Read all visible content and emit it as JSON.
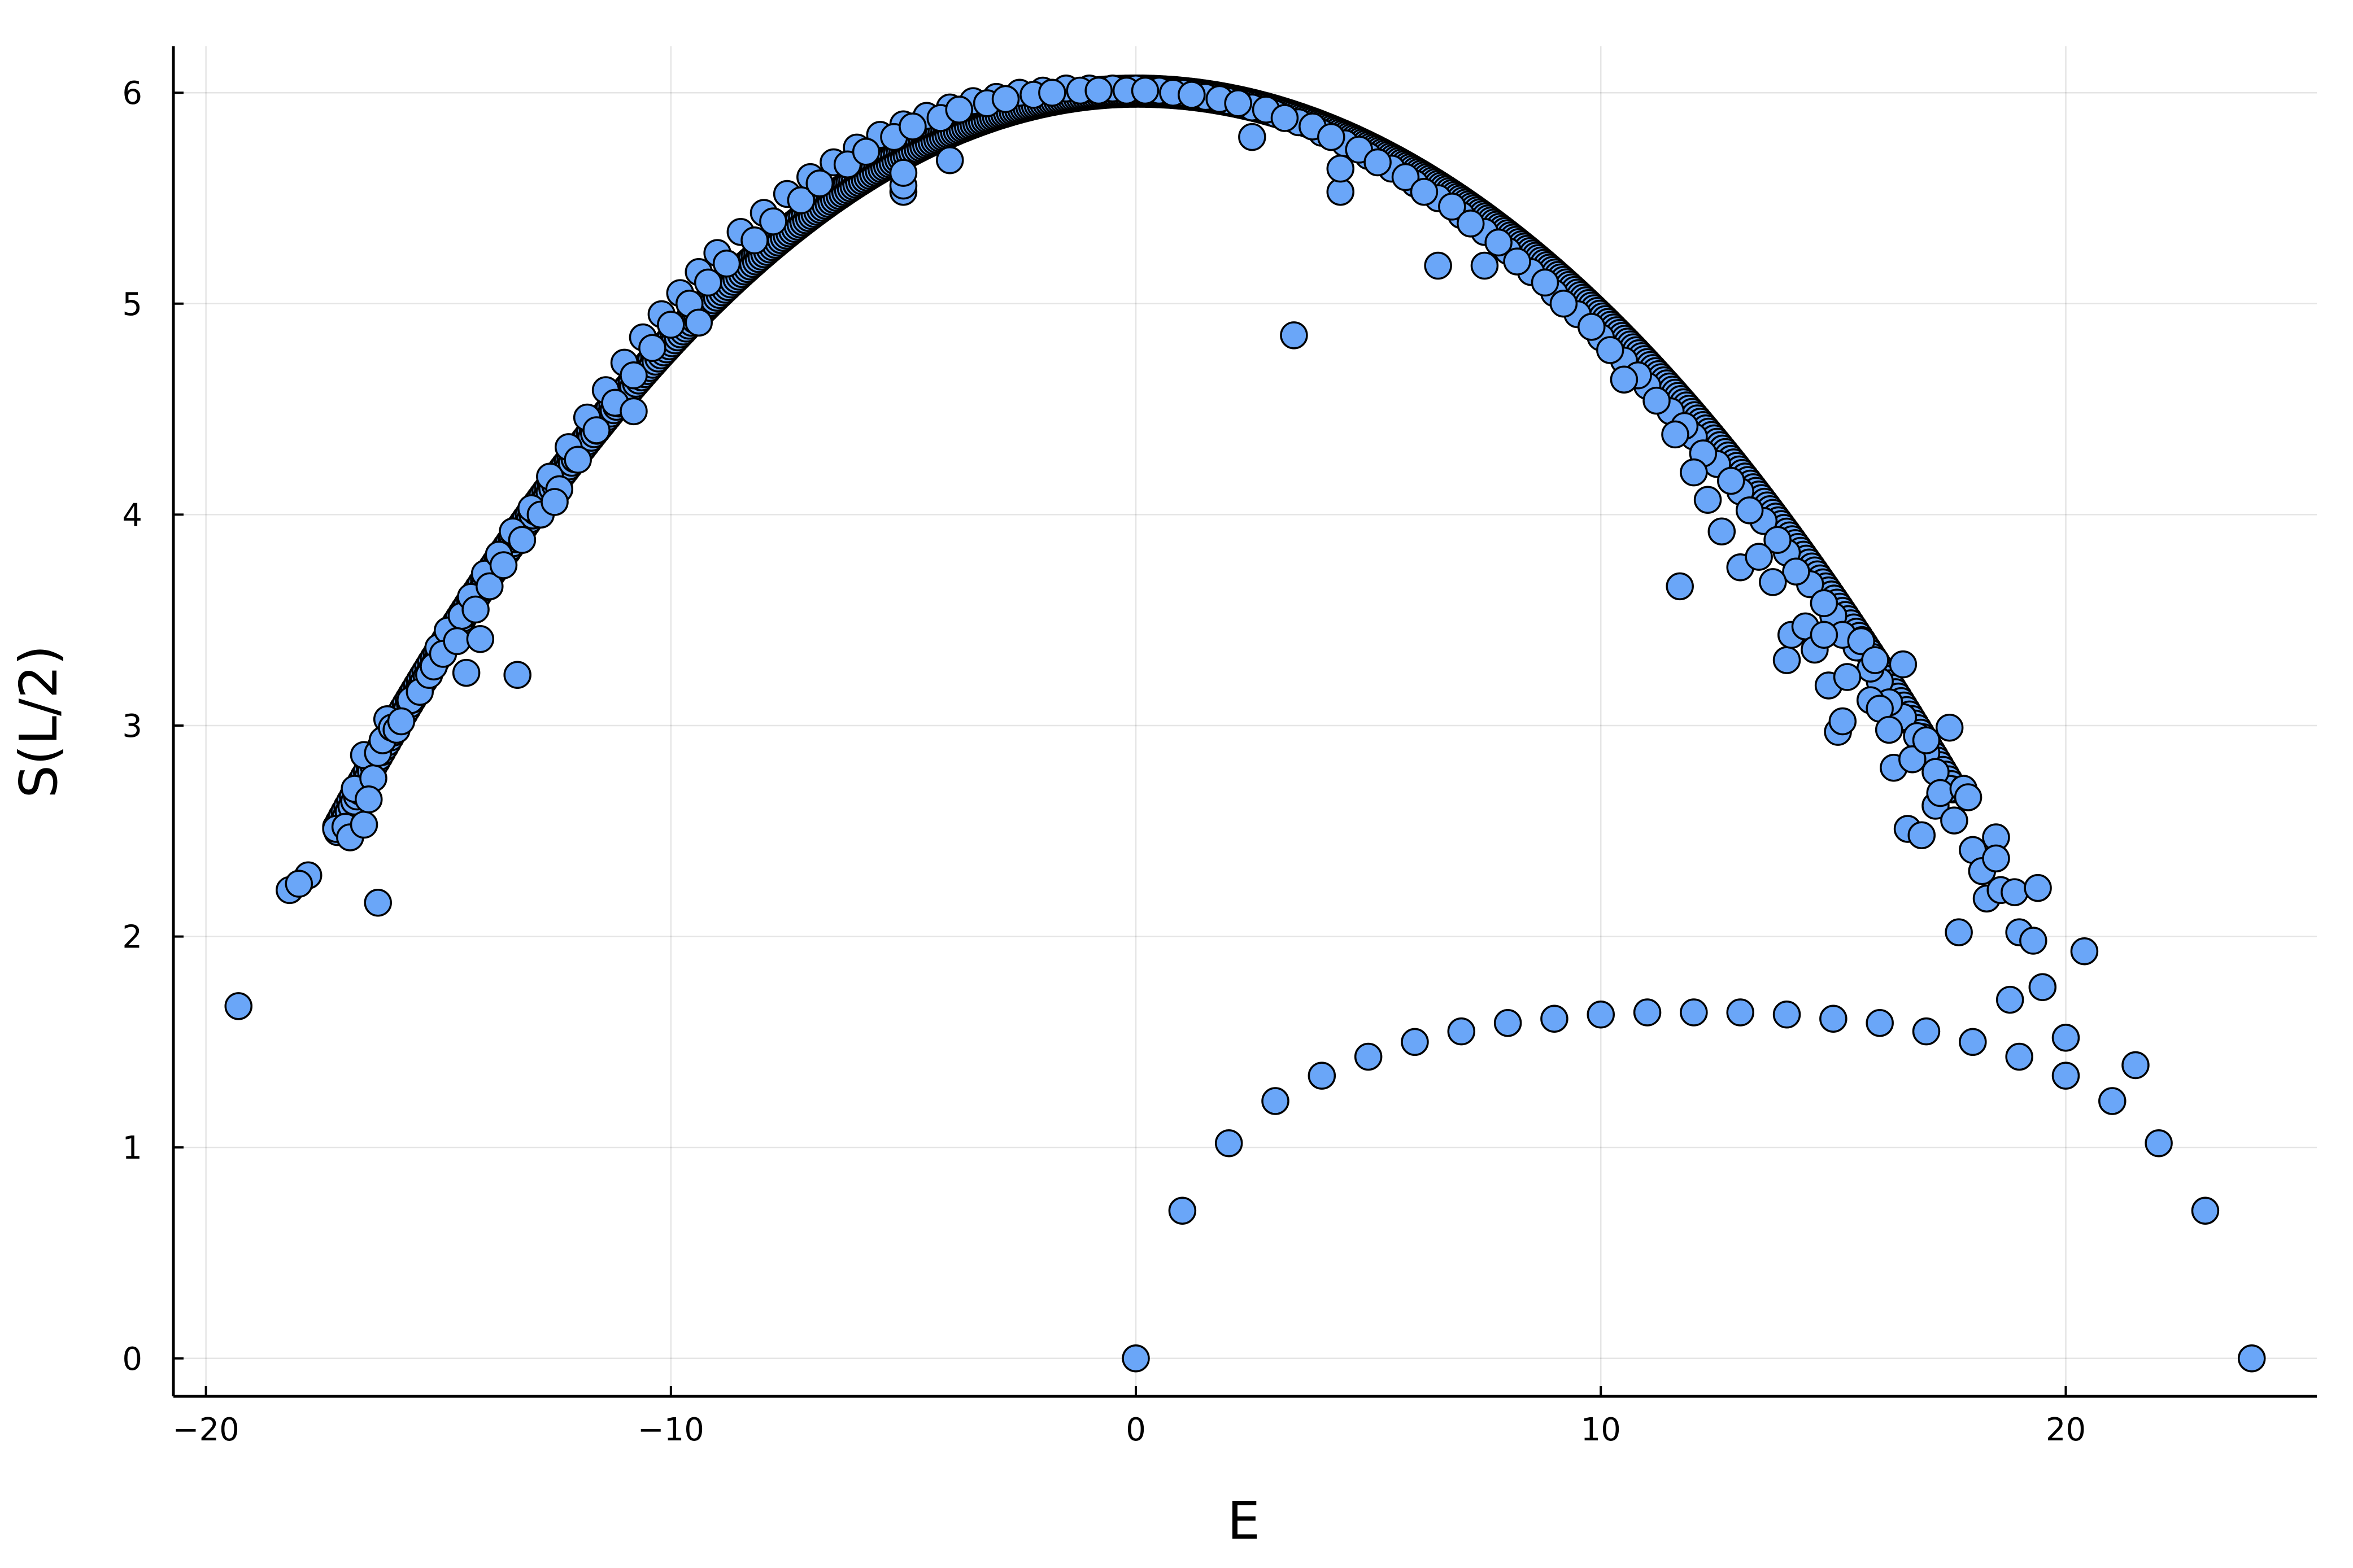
{
  "chart_data": {
    "type": "scatter",
    "title": "",
    "xlabel": "E",
    "ylabel": "S(L/2)",
    "xlim": [
      -20.7,
      25.4
    ],
    "ylim": [
      -0.18,
      6.22
    ],
    "xticks": [
      -20,
      -10,
      0,
      10,
      20
    ],
    "xtick_labels": [
      "−20",
      "−10",
      "0",
      "10",
      "20"
    ],
    "yticks": [
      0,
      1,
      2,
      3,
      4,
      5,
      6
    ],
    "ytick_labels": [
      "0",
      "1",
      "2",
      "3",
      "4",
      "5",
      "6"
    ],
    "grid": true,
    "legend": "none",
    "marker_color": "#6aa6f8",
    "marker_edge_color": "#000000",
    "band": {
      "description_shape": "parabola-like dense band",
      "peak_x": 0,
      "peak_y": 6.02,
      "left_end_x": -17.2,
      "right_end_x": 17.6
    },
    "series": [
      {
        "points": [
          [
            -19.3,
            1.67
          ],
          [
            -18.2,
            2.22
          ],
          [
            -17.8,
            2.29
          ],
          [
            -17.2,
            2.51
          ],
          [
            -17.0,
            2.52
          ],
          [
            -16.9,
            2.47
          ],
          [
            -16.8,
            2.7
          ],
          [
            -16.6,
            2.53
          ],
          [
            -16.6,
            2.86
          ],
          [
            -16.4,
            2.75
          ],
          [
            -16.3,
            2.87
          ],
          [
            -16.2,
            2.93
          ],
          [
            -16.1,
            3.03
          ],
          [
            -16.0,
            2.99
          ],
          [
            -15.9,
            2.98
          ],
          [
            -15.6,
            3.12
          ],
          [
            -15.4,
            3.16
          ],
          [
            -15.2,
            3.24
          ],
          [
            -15.0,
            3.37
          ],
          [
            -14.8,
            3.45
          ],
          [
            -14.5,
            3.52
          ],
          [
            -14.3,
            3.61
          ],
          [
            -14.0,
            3.72
          ],
          [
            -13.7,
            3.81
          ],
          [
            -13.4,
            3.92
          ],
          [
            -13.0,
            4.03
          ],
          [
            -12.6,
            4.18
          ],
          [
            -12.2,
            4.32
          ],
          [
            -11.8,
            4.46
          ],
          [
            -11.4,
            4.59
          ],
          [
            -11.0,
            4.72
          ],
          [
            -10.6,
            4.84
          ],
          [
            -10.2,
            4.95
          ],
          [
            -9.8,
            5.05
          ],
          [
            -9.4,
            5.15
          ],
          [
            -9.0,
            5.24
          ],
          [
            -8.5,
            5.34
          ],
          [
            -8.0,
            5.43
          ],
          [
            -7.5,
            5.52
          ],
          [
            -7.0,
            5.6
          ],
          [
            -6.5,
            5.67
          ],
          [
            -6.0,
            5.74
          ],
          [
            -5.5,
            5.8
          ],
          [
            -5.0,
            5.85
          ],
          [
            -4.5,
            5.89
          ],
          [
            -4.0,
            5.93
          ],
          [
            -3.5,
            5.96
          ],
          [
            -3.0,
            5.98
          ],
          [
            -2.5,
            6.0
          ],
          [
            -2.0,
            6.01
          ],
          [
            -1.5,
            6.02
          ],
          [
            -1.0,
            6.02
          ],
          [
            -0.5,
            6.02
          ],
          [
            0.0,
            6.02
          ],
          [
            0.5,
            6.01
          ],
          [
            1.0,
            6.0
          ],
          [
            1.5,
            5.98
          ],
          [
            2.0,
            5.96
          ],
          [
            2.5,
            5.93
          ],
          [
            3.0,
            5.9
          ],
          [
            3.5,
            5.86
          ],
          [
            4.0,
            5.81
          ],
          [
            4.5,
            5.76
          ],
          [
            5.0,
            5.7
          ],
          [
            5.5,
            5.64
          ],
          [
            6.0,
            5.57
          ],
          [
            6.5,
            5.5
          ],
          [
            7.0,
            5.42
          ],
          [
            7.5,
            5.34
          ],
          [
            8.0,
            5.25
          ],
          [
            8.5,
            5.15
          ],
          [
            9.0,
            5.05
          ],
          [
            9.5,
            4.95
          ],
          [
            10.0,
            4.84
          ],
          [
            10.5,
            4.73
          ],
          [
            11.0,
            4.61
          ],
          [
            11.5,
            4.49
          ],
          [
            12.0,
            4.37
          ],
          [
            12.5,
            4.24
          ],
          [
            13.0,
            4.11
          ],
          [
            13.5,
            3.97
          ],
          [
            14.0,
            3.82
          ],
          [
            14.5,
            3.67
          ],
          [
            15.0,
            3.52
          ],
          [
            15.5,
            3.37
          ],
          [
            16.0,
            3.21
          ],
          [
            16.5,
            3.04
          ],
          [
            17.0,
            2.87
          ],
          [
            17.5,
            2.7
          ],
          [
            -18.0,
            2.25
          ],
          [
            -16.5,
            2.65
          ],
          [
            -15.8,
            3.02
          ],
          [
            -15.1,
            3.28
          ],
          [
            -14.9,
            3.34
          ],
          [
            -14.6,
            3.4
          ],
          [
            -14.2,
            3.55
          ],
          [
            -13.9,
            3.66
          ],
          [
            -13.6,
            3.76
          ],
          [
            -13.2,
            3.88
          ],
          [
            -12.8,
            4.0
          ],
          [
            -12.4,
            4.12
          ],
          [
            -12.0,
            4.26
          ],
          [
            -11.6,
            4.4
          ],
          [
            -11.2,
            4.53
          ],
          [
            -10.8,
            4.66
          ],
          [
            -10.4,
            4.79
          ],
          [
            -10.0,
            4.9
          ],
          [
            -9.6,
            5.0
          ],
          [
            -9.2,
            5.1
          ],
          [
            -8.8,
            5.19
          ],
          [
            -8.2,
            5.3
          ],
          [
            -7.8,
            5.39
          ],
          [
            -7.2,
            5.49
          ],
          [
            -6.8,
            5.57
          ],
          [
            -6.2,
            5.66
          ],
          [
            -5.8,
            5.72
          ],
          [
            -5.2,
            5.79
          ],
          [
            -4.8,
            5.84
          ],
          [
            -4.2,
            5.88
          ],
          [
            -3.8,
            5.92
          ],
          [
            -3.2,
            5.95
          ],
          [
            -2.8,
            5.97
          ],
          [
            -2.2,
            5.99
          ],
          [
            -1.8,
            6.0
          ],
          [
            -1.2,
            6.01
          ],
          [
            -0.8,
            6.01
          ],
          [
            -0.2,
            6.01
          ],
          [
            0.2,
            6.01
          ],
          [
            0.8,
            6.0
          ],
          [
            1.2,
            5.99
          ],
          [
            1.8,
            5.97
          ],
          [
            2.2,
            5.95
          ],
          [
            2.8,
            5.92
          ],
          [
            3.2,
            5.88
          ],
          [
            3.8,
            5.84
          ],
          [
            4.2,
            5.79
          ],
          [
            4.8,
            5.73
          ],
          [
            5.2,
            5.67
          ],
          [
            5.8,
            5.6
          ],
          [
            6.2,
            5.53
          ],
          [
            6.8,
            5.46
          ],
          [
            7.2,
            5.38
          ],
          [
            7.8,
            5.29
          ],
          [
            8.2,
            5.2
          ],
          [
            8.8,
            5.1
          ],
          [
            9.2,
            5.0
          ],
          [
            9.8,
            4.89
          ],
          [
            10.2,
            4.78
          ],
          [
            10.8,
            4.66
          ],
          [
            11.2,
            4.54
          ],
          [
            11.8,
            4.42
          ],
          [
            12.2,
            4.29
          ],
          [
            12.8,
            4.16
          ],
          [
            13.2,
            4.02
          ],
          [
            13.8,
            3.88
          ],
          [
            14.2,
            3.73
          ],
          [
            14.8,
            3.58
          ],
          [
            15.2,
            3.43
          ],
          [
            15.8,
            3.27
          ],
          [
            16.2,
            3.11
          ],
          [
            16.8,
            2.95
          ],
          [
            17.2,
            2.78
          ],
          [
            -16.3,
            2.16
          ],
          [
            -14.4,
            3.25
          ],
          [
            -14.1,
            3.41
          ],
          [
            -13.3,
            3.24
          ],
          [
            -12.5,
            4.06
          ],
          [
            -10.8,
            4.49
          ],
          [
            -9.4,
            4.91
          ],
          [
            -5.0,
            5.53
          ],
          [
            -5.0,
            5.56
          ],
          [
            -5.0,
            5.62
          ],
          [
            -4.0,
            5.68
          ],
          [
            2.5,
            5.79
          ],
          [
            3.4,
            4.85
          ],
          [
            4.4,
            5.53
          ],
          [
            4.4,
            5.64
          ],
          [
            6.5,
            5.18
          ],
          [
            7.5,
            5.18
          ],
          [
            10.5,
            4.64
          ],
          [
            11.6,
            4.38
          ],
          [
            11.7,
            3.66
          ],
          [
            12.0,
            4.2
          ],
          [
            12.3,
            4.07
          ],
          [
            12.6,
            3.92
          ],
          [
            13.0,
            3.75
          ],
          [
            13.4,
            3.8
          ],
          [
            13.7,
            3.68
          ],
          [
            14.0,
            3.31
          ],
          [
            14.1,
            3.43
          ],
          [
            14.4,
            3.47
          ],
          [
            14.6,
            3.36
          ],
          [
            14.8,
            3.43
          ],
          [
            14.9,
            3.19
          ],
          [
            15.1,
            2.97
          ],
          [
            15.2,
            3.02
          ],
          [
            15.3,
            3.23
          ],
          [
            15.6,
            3.4
          ],
          [
            15.8,
            3.12
          ],
          [
            15.9,
            3.31
          ],
          [
            16.0,
            3.08
          ],
          [
            16.2,
            2.98
          ],
          [
            16.3,
            2.8
          ],
          [
            16.5,
            3.29
          ],
          [
            16.6,
            2.51
          ],
          [
            16.7,
            2.84
          ],
          [
            16.9,
            2.48
          ],
          [
            17.0,
            2.93
          ],
          [
            17.2,
            2.62
          ],
          [
            17.3,
            2.68
          ],
          [
            17.5,
            2.99
          ],
          [
            17.6,
            2.55
          ],
          [
            17.7,
            2.02
          ],
          [
            17.8,
            2.7
          ],
          [
            17.9,
            2.66
          ],
          [
            18.0,
            2.41
          ],
          [
            18.2,
            2.31
          ],
          [
            18.3,
            2.18
          ],
          [
            18.5,
            2.47
          ],
          [
            18.5,
            2.37
          ],
          [
            18.6,
            2.22
          ],
          [
            18.8,
            1.7
          ],
          [
            18.9,
            2.21
          ],
          [
            19.0,
            2.02
          ],
          [
            19.3,
            1.98
          ],
          [
            19.4,
            2.23
          ],
          [
            19.5,
            1.76
          ],
          [
            20.0,
            1.52
          ],
          [
            20.4,
            1.93
          ],
          [
            0,
            0.0
          ],
          [
            1,
            0.7
          ],
          [
            2,
            1.02
          ],
          [
            3,
            1.22
          ],
          [
            4,
            1.34
          ],
          [
            5,
            1.43
          ],
          [
            6,
            1.5
          ],
          [
            7,
            1.55
          ],
          [
            8,
            1.59
          ],
          [
            9,
            1.61
          ],
          [
            10,
            1.63
          ],
          [
            11,
            1.64
          ],
          [
            12,
            1.64
          ],
          [
            13,
            1.64
          ],
          [
            14,
            1.63
          ],
          [
            15,
            1.61
          ],
          [
            16,
            1.59
          ],
          [
            17,
            1.55
          ],
          [
            18,
            1.5
          ],
          [
            19,
            1.43
          ],
          [
            20,
            1.34
          ],
          [
            21,
            1.22
          ],
          [
            21.5,
            1.39
          ],
          [
            22,
            1.02
          ],
          [
            23,
            0.7
          ],
          [
            24,
            0.0
          ]
        ]
      }
    ]
  }
}
